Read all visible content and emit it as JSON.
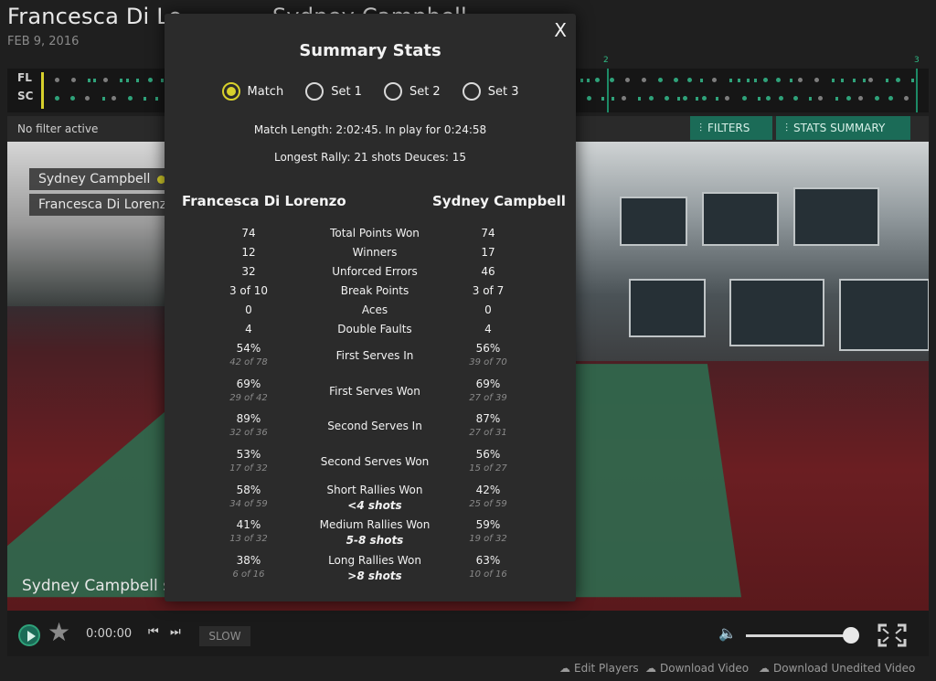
{
  "page": {
    "title_left": "Francesca Di Lo",
    "title_right": "Sydney Campbell",
    "date": "FEB 9, 2016"
  },
  "timeline": {
    "rows": [
      "FL",
      "SC"
    ],
    "set_markers": [
      "2",
      "3"
    ]
  },
  "filterbar": {
    "status": "No filter active",
    "filters_label": "FILTERS",
    "stats_summary_label": "STATS SUMMARY"
  },
  "video": {
    "player_tags": [
      "Sydney Campbell",
      "Francesca Di Lorenzo"
    ],
    "caption": "Sydney Campbell se"
  },
  "controls": {
    "time": "0:00:00",
    "slow_label": "SLOW",
    "volume_level": 1.0
  },
  "footer": {
    "edit_players": "Edit Players",
    "download_video": "Download Video",
    "download_unedited": "Download Unedited Video"
  },
  "modal": {
    "title": "Summary Stats",
    "close": "X",
    "tabs": [
      {
        "label": "Match",
        "selected": true
      },
      {
        "label": "Set 1",
        "selected": false
      },
      {
        "label": "Set 2",
        "selected": false
      },
      {
        "label": "Set 3",
        "selected": false
      }
    ],
    "match_length": "Match Length: 2:02:45. In play for 0:24:58",
    "longest_rally": "Longest Rally: 21 shots Deuces: 15",
    "player_left": "Francesca Di Lorenzo",
    "player_right": "Sydney Campbell",
    "stats": [
      {
        "label": "Total Points Won",
        "left": "74",
        "right": "74"
      },
      {
        "label": "Winners",
        "left": "12",
        "right": "17"
      },
      {
        "label": "Unforced Errors",
        "left": "32",
        "right": "46"
      },
      {
        "label": "Break Points",
        "left": "3 of 10",
        "right": "3 of 7"
      },
      {
        "label": "Aces",
        "left": "0",
        "right": "0"
      },
      {
        "label": "Double Faults",
        "left": "4",
        "right": "4"
      },
      {
        "label": "First Serves In",
        "left": "54%",
        "left_sub": "42 of 78",
        "right": "56%",
        "right_sub": "39 of 70"
      },
      {
        "label": "First Serves Won",
        "left": "69%",
        "left_sub": "29 of 42",
        "right": "69%",
        "right_sub": "27 of 39"
      },
      {
        "label": "Second Serves In",
        "left": "89%",
        "left_sub": "32 of 36",
        "right": "87%",
        "right_sub": "27 of 31"
      },
      {
        "label": "Second Serves Won",
        "left": "53%",
        "left_sub": "17 of 32",
        "right": "56%",
        "right_sub": "15 of 27"
      },
      {
        "label": "Short Rallies Won",
        "label2": "<4 shots",
        "left": "58%",
        "left_sub": "34 of 59",
        "right": "42%",
        "right_sub": "25 of 59"
      },
      {
        "label": "Medium Rallies Won",
        "label2": "5-8 shots",
        "left": "41%",
        "left_sub": "13 of 32",
        "right": "59%",
        "right_sub": "19 of 32"
      },
      {
        "label": "Long Rallies Won",
        "label2": ">8 shots",
        "left": "38%",
        "left_sub": "6 of 16",
        "right": "63%",
        "right_sub": "10 of 16"
      }
    ]
  },
  "colors": {
    "accent_yellow": "#d7d02c",
    "teal": "#1b6b57",
    "modal_bg": "#2b2b2b"
  }
}
